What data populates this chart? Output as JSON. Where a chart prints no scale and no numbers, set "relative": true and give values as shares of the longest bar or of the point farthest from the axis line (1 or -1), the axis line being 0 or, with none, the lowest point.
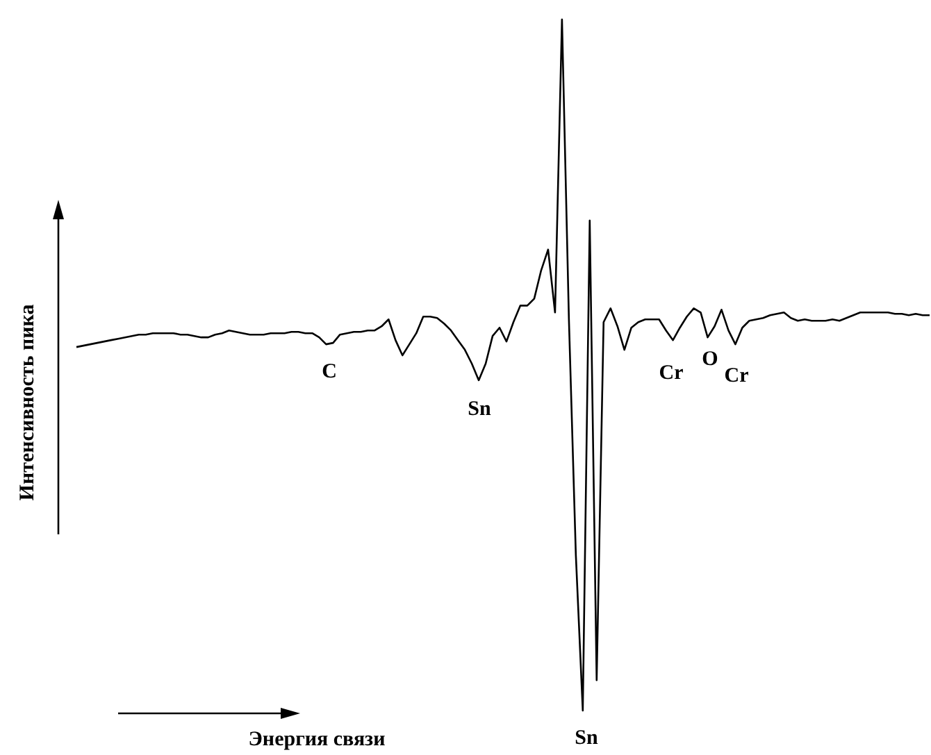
{
  "chart_data": {
    "type": "line",
    "relative": true,
    "xlabel": "Энергия связи",
    "ylabel": "Интенсивность пика",
    "annotations": [
      "C",
      "Sn",
      "Sn",
      "Cr",
      "O",
      "Cr"
    ],
    "categories": [
      null,
      null,
      null,
      null,
      null,
      null,
      null,
      null,
      null,
      null,
      null,
      null,
      null,
      null,
      null,
      null,
      null,
      null,
      null,
      null,
      null,
      null,
      null,
      null,
      null,
      null,
      null,
      null,
      null,
      null,
      null,
      null,
      null,
      null,
      null,
      null,
      null,
      null,
      null,
      null,
      null,
      null,
      null,
      null,
      null,
      null,
      null,
      null,
      null,
      null,
      null,
      null,
      null,
      null,
      null,
      null,
      null,
      null,
      null,
      null,
      null,
      null,
      null,
      null,
      null,
      null,
      null,
      null,
      null,
      null,
      null,
      null,
      null,
      null,
      null,
      null,
      null,
      null,
      null,
      null,
      null,
      null,
      null,
      null,
      null,
      null,
      null,
      null,
      null,
      null,
      null,
      null,
      null,
      null,
      null,
      null,
      null,
      null,
      null,
      null,
      null,
      null,
      null,
      null,
      null,
      null,
      null,
      null,
      null,
      null,
      null,
      null,
      null,
      null,
      null,
      null,
      null,
      null,
      null,
      null,
      null,
      null,
      null,
      null
    ],
    "series": [
      {
        "color": "#000000",
        "values": [
          0.526,
          0.528,
          0.53,
          0.532,
          0.534,
          0.536,
          0.538,
          0.54,
          0.542,
          0.544,
          0.544,
          0.546,
          0.546,
          0.546,
          0.546,
          0.544,
          0.544,
          0.542,
          0.54,
          0.54,
          0.544,
          0.546,
          0.55,
          0.548,
          0.546,
          0.544,
          0.544,
          0.544,
          0.546,
          0.546,
          0.546,
          0.548,
          0.548,
          0.546,
          0.546,
          0.54,
          0.53,
          0.532,
          0.544,
          0.546,
          0.548,
          0.548,
          0.55,
          0.55,
          0.556,
          0.566,
          0.536,
          0.514,
          0.53,
          0.546,
          0.57,
          0.57,
          0.568,
          0.56,
          0.55,
          0.536,
          0.522,
          0.502,
          0.478,
          0.502,
          0.542,
          0.554,
          0.534,
          0.562,
          0.586,
          0.586,
          0.596,
          0.637,
          0.667,
          0.576,
          1,
          0.566,
          0.225,
          0,
          0.709,
          0.044,
          0.562,
          0.582,
          0.556,
          0.522,
          0.554,
          0.562,
          0.566,
          0.566,
          0.566,
          0.55,
          0.536,
          0.554,
          0.57,
          0.582,
          0.576,
          0.54,
          0.556,
          0.58,
          0.55,
          0.53,
          0.554,
          0.564,
          0.566,
          0.568,
          0.572,
          0.574,
          0.576,
          0.568,
          0.564,
          0.566,
          0.564,
          0.564,
          0.564,
          0.566,
          0.564,
          0.568,
          0.572,
          0.576,
          0.576,
          0.576,
          0.576,
          0.576,
          0.574,
          0.574,
          0.572,
          0.574,
          0.572,
          0.572
        ]
      }
    ]
  }
}
